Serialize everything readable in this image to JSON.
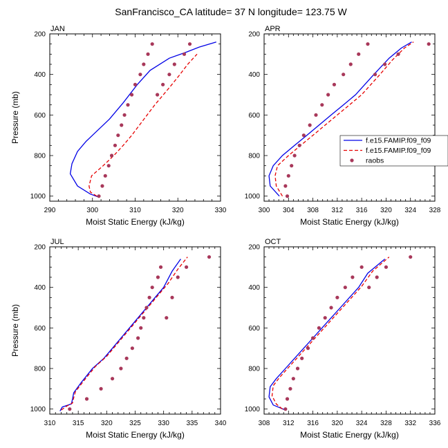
{
  "figure": {
    "title": "SanFrancisco_CA  latitude= 37 N longitude= 123.75 W"
  },
  "legend": {
    "entries": [
      {
        "label": "f.e15.FAMIP.f09_f09",
        "color": "#0000e6",
        "style": "solid"
      },
      {
        "label": "f.e15.FAMIP.f09_f09",
        "color": "#e60000",
        "style": "dashed"
      },
      {
        "label": "raobs",
        "color": "#a8385a",
        "style": "dot"
      }
    ]
  },
  "chart_data": [
    {
      "type": "line",
      "panel": "JAN",
      "xlabel": "Moist Static Energy (kJ/kg)",
      "ylabel": "Pressure (mb)",
      "xlim": [
        290,
        330
      ],
      "ylim": [
        1025,
        200
      ],
      "xticks": [
        290,
        300,
        310,
        320,
        330
      ],
      "yticks": [
        200,
        400,
        600,
        800,
        1000
      ],
      "series": [
        {
          "name": "f.e15.FAMIP.f09_f09",
          "color": "#0000e6",
          "style": "solid",
          "x": [
            301.5,
            299.5,
            296.5,
            294.8,
            295.2,
            296.5,
            298.5,
            301.0,
            304.0,
            307.2,
            310.5,
            313.5,
            318.0,
            322.0,
            325.0,
            329.0
          ],
          "y": [
            1005,
            990,
            950,
            890,
            840,
            780,
            730,
            680,
            620,
            540,
            450,
            380,
            320,
            290,
            265,
            240
          ]
        },
        {
          "name": "f.e15.FAMIP.f09_f09",
          "color": "#e60000",
          "style": "dashed",
          "x": [
            301.0,
            299.5,
            299.2,
            299.8,
            302.5,
            305.0,
            307.2,
            309.2,
            311.0,
            312.8,
            314.6,
            316.6,
            318.6,
            320.5,
            322.3,
            324.5
          ],
          "y": [
            1000,
            980,
            950,
            900,
            850,
            800,
            750,
            700,
            650,
            600,
            550,
            500,
            450,
            400,
            350,
            300
          ]
        },
        {
          "name": "raobs",
          "color": "#a8385a",
          "style": "dot",
          "x": [
            301.5,
            302.3,
            303.0,
            303.8,
            304.5,
            305.3,
            306.0,
            306.8,
            307.5,
            308.3,
            309.2,
            310.0,
            311.2,
            312.0,
            313.0,
            314.0,
            315.2,
            316.5,
            318.0,
            319.2,
            321.5,
            322.8
          ],
          "y": [
            1000,
            950,
            900,
            850,
            800,
            750,
            700,
            650,
            600,
            550,
            500,
            450,
            400,
            350,
            300,
            250,
            500,
            450,
            400,
            350,
            300,
            250
          ]
        }
      ]
    },
    {
      "type": "line",
      "panel": "APR",
      "xlabel": "Moist Static Energy (kJ/kg)",
      "ylabel": "",
      "xlim": [
        300,
        328
      ],
      "ylim": [
        1025,
        200
      ],
      "xticks": [
        300,
        304,
        308,
        312,
        316,
        320,
        324,
        328
      ],
      "yticks": [
        200,
        400,
        600,
        800,
        1000
      ],
      "series": [
        {
          "name": "f.e15.FAMIP.f09_f09",
          "color": "#0000e6",
          "style": "solid",
          "x": [
            302.5,
            301.0,
            300.8,
            301.5,
            303.0,
            305.0,
            307.0,
            309.0,
            311.0,
            313.0,
            315.0,
            316.5,
            318.0,
            320.5,
            322.5,
            324.2
          ],
          "y": [
            1000,
            950,
            900,
            850,
            800,
            750,
            700,
            650,
            600,
            550,
            500,
            450,
            400,
            320,
            270,
            240
          ]
        },
        {
          "name": "f.e15.FAMIP.f09_f09",
          "color": "#e60000",
          "style": "dashed",
          "x": [
            303.0,
            302.0,
            301.8,
            302.2,
            304.0,
            306.0,
            308.0,
            310.0,
            312.0,
            314.0,
            316.0,
            317.5,
            319.0,
            321.0,
            323.0,
            324.5
          ],
          "y": [
            1000,
            950,
            900,
            850,
            800,
            750,
            700,
            650,
            600,
            550,
            500,
            450,
            400,
            330,
            270,
            240
          ]
        },
        {
          "name": "raobs",
          "color": "#a8385a",
          "style": "dot",
          "x": [
            303.8,
            303.5,
            304.0,
            304.5,
            305.0,
            305.8,
            306.5,
            307.5,
            308.5,
            309.5,
            310.5,
            311.5,
            313.0,
            314.2,
            315.5,
            317.0,
            318.2,
            319.8,
            322.0,
            327.0
          ],
          "y": [
            1000,
            950,
            900,
            850,
            800,
            750,
            700,
            650,
            600,
            550,
            500,
            450,
            400,
            350,
            300,
            250,
            400,
            350,
            300,
            250
          ]
        }
      ]
    },
    {
      "type": "line",
      "panel": "JUL",
      "xlabel": "Moist Static Energy (kJ/kg)",
      "ylabel": "Pressure (mb)",
      "xlim": [
        310,
        340
      ],
      "ylim": [
        1025,
        200
      ],
      "xticks": [
        310,
        315,
        320,
        325,
        330,
        335,
        340
      ],
      "yticks": [
        200,
        400,
        600,
        800,
        1000
      ],
      "series": [
        {
          "name": "f.e15.FAMIP.f09_f09",
          "color": "#0000e6",
          "style": "solid",
          "x": [
            311.8,
            312.2,
            313.8,
            314.0,
            314.2,
            315.5,
            317.5,
            319.5,
            321.0,
            322.5,
            324.0,
            325.5,
            327.0,
            328.5,
            330.0,
            331.5,
            333.0
          ],
          "y": [
            1010,
            990,
            975,
            950,
            920,
            870,
            800,
            750,
            700,
            650,
            600,
            550,
            500,
            450,
            400,
            320,
            260
          ]
        },
        {
          "name": "f.e15.FAMIP.f09_f09",
          "color": "#e60000",
          "style": "dashed",
          "x": [
            312.0,
            313.0,
            314.0,
            314.2,
            314.5,
            316.0,
            318.0,
            320.0,
            321.5,
            323.0,
            324.5,
            326.0,
            327.5,
            329.0,
            330.8,
            332.5,
            334.2
          ],
          "y": [
            1005,
            985,
            970,
            945,
            915,
            860,
            790,
            740,
            690,
            640,
            590,
            540,
            490,
            440,
            380,
            310,
            250
          ]
        },
        {
          "name": "raobs",
          "color": "#a8385a",
          "style": "dot",
          "x": [
            313.5,
            316.5,
            319.0,
            321.0,
            322.5,
            323.5,
            324.5,
            325.5,
            326.0,
            326.5,
            327.0,
            327.5,
            328.0,
            329.0,
            329.5,
            330.5,
            331.5,
            332.5,
            334.0,
            338.0
          ],
          "y": [
            1000,
            950,
            900,
            850,
            800,
            750,
            700,
            650,
            600,
            550,
            500,
            450,
            400,
            350,
            300,
            550,
            450,
            350,
            300,
            250
          ]
        }
      ]
    },
    {
      "type": "line",
      "panel": "OCT",
      "xlabel": "Moist Static Energy (kJ/kg)",
      "ylabel": "",
      "xlim": [
        308,
        336
      ],
      "ylim": [
        1025,
        200
      ],
      "xticks": [
        308,
        312,
        316,
        320,
        324,
        328,
        332,
        336
      ],
      "yticks": [
        200,
        400,
        600,
        800,
        1000
      ],
      "series": [
        {
          "name": "f.e15.FAMIP.f09_f09",
          "color": "#0000e6",
          "style": "solid",
          "x": [
            311.5,
            309.5,
            308.8,
            309.0,
            310.0,
            311.5,
            313.0,
            314.5,
            316.0,
            317.5,
            319.0,
            320.5,
            322.0,
            323.5,
            325.0,
            327.8
          ],
          "y": [
            1005,
            980,
            940,
            890,
            850,
            800,
            750,
            700,
            650,
            600,
            550,
            500,
            450,
            400,
            330,
            260
          ]
        },
        {
          "name": "f.e15.FAMIP.f09_f09",
          "color": "#e60000",
          "style": "dashed",
          "x": [
            311.0,
            310.0,
            309.3,
            309.5,
            310.5,
            312.0,
            313.5,
            315.0,
            316.5,
            318.0,
            319.5,
            321.0,
            322.5,
            324.0,
            325.8,
            328.5
          ],
          "y": [
            1000,
            975,
            935,
            885,
            845,
            795,
            745,
            695,
            645,
            595,
            545,
            495,
            445,
            395,
            320,
            250
          ]
        },
        {
          "name": "raobs",
          "color": "#a8385a",
          "style": "dot",
          "x": [
            311.5,
            311.8,
            312.3,
            312.8,
            313.5,
            314.2,
            315.2,
            316.0,
            317.0,
            318.0,
            319.0,
            320.0,
            321.3,
            322.5,
            324.0,
            325.2,
            326.5,
            328.0,
            332.0
          ],
          "y": [
            1000,
            950,
            900,
            850,
            800,
            750,
            700,
            650,
            600,
            550,
            500,
            450,
            400,
            350,
            300,
            400,
            350,
            300,
            250
          ]
        }
      ]
    }
  ]
}
